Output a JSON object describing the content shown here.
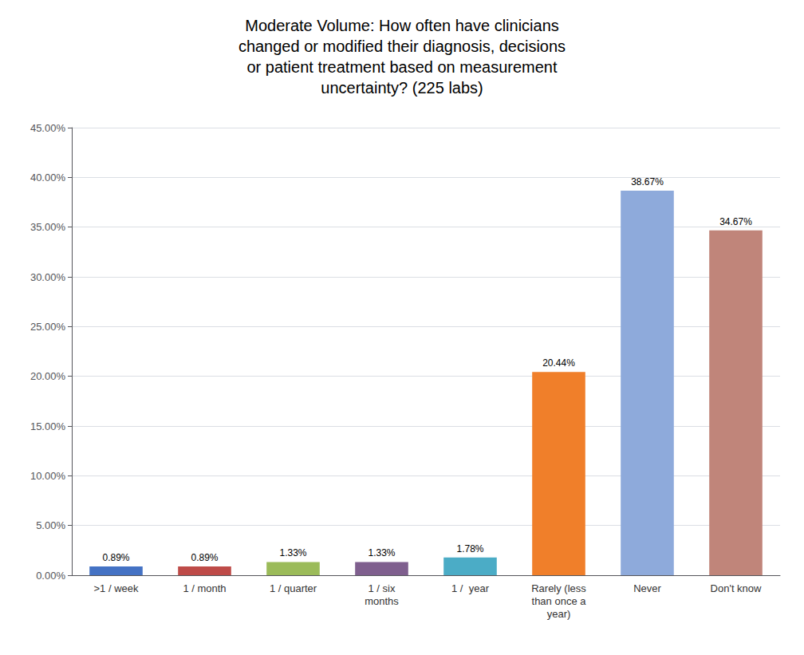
{
  "chart_data": {
    "type": "bar",
    "title": "Moderate Volume: How often have clinicians\nchanged or modified their diagnosis, decisions\nor patient treatment based on measurement\nuncertainty? (225 labs)",
    "categories": [
      ">1 / week",
      "1 / month",
      "1 / quarter",
      "1 / six\nmonths",
      "1 /  year",
      "Rarely (less\nthan once a\nyear)",
      "Never",
      "Don't know"
    ],
    "values": [
      0.0089,
      0.0089,
      0.0133,
      0.0133,
      0.0178,
      0.2044,
      0.3867,
      0.3467
    ],
    "value_labels": [
      "0.89%",
      "0.89%",
      "1.33%",
      "1.33%",
      "1.78%",
      "20.44%",
      "38.67%",
      "34.67%"
    ],
    "data_labels": true,
    "colors": [
      "#4472c4",
      "#be4b48",
      "#9bbb59",
      "#7f5f8e",
      "#4bacc6",
      "#f07f2a",
      "#8eaadb",
      "#c0857a"
    ],
    "ylim": [
      0,
      0.45
    ],
    "yticks": [
      {
        "value": 0.0,
        "label": "0.00%"
      },
      {
        "value": 0.05,
        "label": "5.00%"
      },
      {
        "value": 0.1,
        "label": "10.00%"
      },
      {
        "value": 0.15,
        "label": "15.00%"
      },
      {
        "value": 0.2,
        "label": "20.00%"
      },
      {
        "value": 0.25,
        "label": "25.00%"
      },
      {
        "value": 0.3,
        "label": "30.00%"
      },
      {
        "value": 0.35,
        "label": "35.00%"
      },
      {
        "value": 0.4,
        "label": "40.00%"
      },
      {
        "value": 0.45,
        "label": "45.00%"
      }
    ],
    "grid": true
  }
}
